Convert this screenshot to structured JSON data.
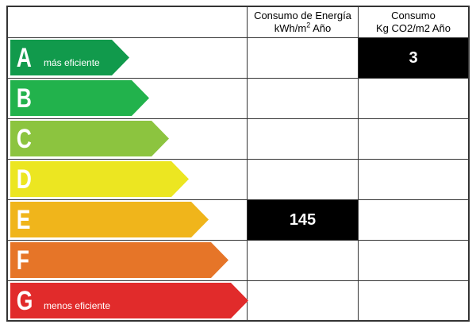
{
  "header": {
    "energy_line1": "Consumo de Energía",
    "energy_line2_unit": "kWh/m",
    "energy_line2_sup": "2",
    "energy_line2_rest": " Año",
    "co2_line1": "Consumo",
    "co2_line2": "Kg CO2/m2 Año"
  },
  "ratings": [
    {
      "letter": "A",
      "label": "más eficiente",
      "color": "#119a4c"
    },
    {
      "letter": "B",
      "label": "",
      "color": "#22b24c"
    },
    {
      "letter": "C",
      "label": "",
      "color": "#8cc43f"
    },
    {
      "letter": "D",
      "label": "",
      "color": "#ece621"
    },
    {
      "letter": "E",
      "label": "",
      "color": "#f0b51b"
    },
    {
      "letter": "F",
      "label": "",
      "color": "#e67528"
    },
    {
      "letter": "G",
      "label": "menos eficiente",
      "color": "#e12b2b"
    }
  ],
  "values": {
    "energy": {
      "rating": "E",
      "value": "145"
    },
    "co2": {
      "rating": "A",
      "value": "3"
    }
  }
}
